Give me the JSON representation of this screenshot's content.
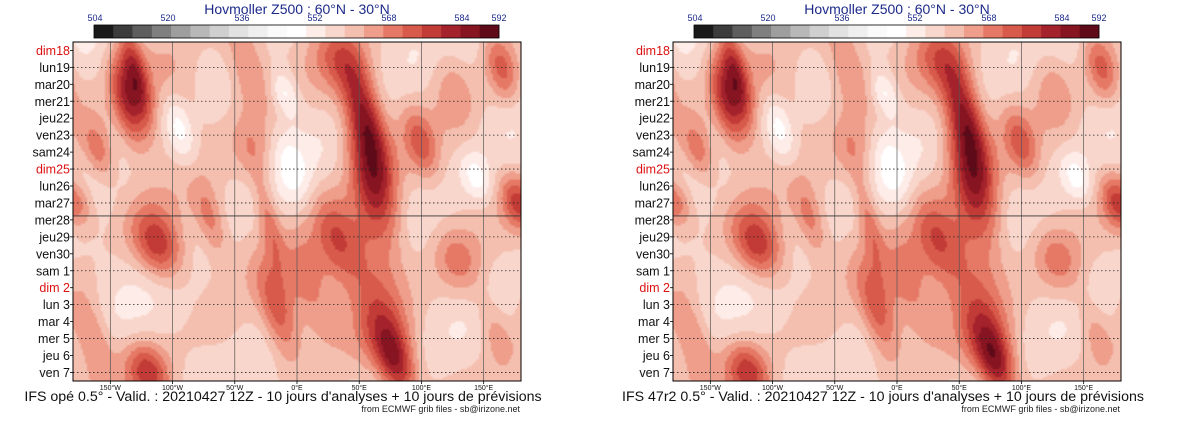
{
  "chart_data": [
    {
      "type": "heatmap",
      "title": "Hovmoller Z500 : 60°N - 30°N",
      "caption": "IFS opé 0.5° - Valid. : 20210427 12Z - 10 jours d'analyses + 10 jours de prévisions",
      "credit": "from ECMWF grib files - sb@irizone.net",
      "colorbar": {
        "tick_labels": [
          "504",
          "520",
          "536",
          "552",
          "568",
          "584",
          "592"
        ],
        "colors": [
          "#1a1a1a",
          "#3c3c3c",
          "#5e5e5e",
          "#7f7f7f",
          "#9e9e9e",
          "#b8b8b8",
          "#cfcfcf",
          "#e2e2e2",
          "#efefef",
          "#fafafa",
          "#ffffff",
          "#fdece8",
          "#f9d6cc",
          "#f4bfaf",
          "#ee9e8a",
          "#e57966",
          "#d85a4b",
          "#c23b36",
          "#a3222b",
          "#861421",
          "#5e0a18"
        ]
      },
      "y_dates": [
        {
          "label": "dim18",
          "red": true
        },
        {
          "label": "lun19",
          "red": false
        },
        {
          "label": "mar20",
          "red": false
        },
        {
          "label": "mer21",
          "red": false
        },
        {
          "label": "jeu22",
          "red": false
        },
        {
          "label": "ven23",
          "red": false
        },
        {
          "label": "sam24",
          "red": false
        },
        {
          "label": "dim25",
          "red": true
        },
        {
          "label": "lun26",
          "red": false
        },
        {
          "label": "mar27",
          "red": false
        },
        {
          "label": "mer28",
          "red": false
        },
        {
          "label": "jeu29",
          "red": false
        },
        {
          "label": "ven30",
          "red": false
        },
        {
          "label": "sam 1",
          "red": false
        },
        {
          "label": "dim 2",
          "red": true
        },
        {
          "label": "lun 3",
          "red": false
        },
        {
          "label": "mar 4",
          "red": false
        },
        {
          "label": "mer 5",
          "red": false
        },
        {
          "label": "jeu 6",
          "red": false
        },
        {
          "label": "ven 7",
          "red": false
        }
      ],
      "x_ticks": [
        {
          "label": "150°W",
          "lon": -150
        },
        {
          "label": "100°W",
          "lon": -100
        },
        {
          "label": "50°W",
          "lon": -50
        },
        {
          "label": "0°E",
          "lon": 0
        },
        {
          "label": "50°E",
          "lon": 50
        },
        {
          "label": "100°E",
          "lon": 100
        },
        {
          "label": "150°E",
          "lon": 150
        }
      ],
      "xlim": [
        -180,
        180
      ],
      "analysis_forecast_split": "mer28",
      "anomaly_blobs": [
        {
          "lon": -130,
          "day": 1.5,
          "value": 585,
          "slon": 7,
          "sday": 2.2
        },
        {
          "lon": -138,
          "day": 3.0,
          "value": 582,
          "slon": 8,
          "sday": 2.0
        },
        {
          "lon": -100,
          "day": 2.5,
          "value": 572,
          "slon": 20,
          "sday": 2.0
        },
        {
          "lon": -40,
          "day": 1.0,
          "value": 574,
          "slon": 12,
          "sday": 2.0
        },
        {
          "lon": -35,
          "day": 6.0,
          "value": 572,
          "slon": 12,
          "sday": 1.5
        },
        {
          "lon": 35,
          "day": 0.5,
          "value": 575,
          "slon": 15,
          "sday": 1.5
        },
        {
          "lon": 55,
          "day": 4.0,
          "value": 588,
          "slon": 10,
          "sday": 2.2
        },
        {
          "lon": 62,
          "day": 8.0,
          "value": 586,
          "slon": 13,
          "sday": 2.5
        },
        {
          "lon": 52,
          "day": 12.0,
          "value": 576,
          "slon": 20,
          "sday": 2.0
        },
        {
          "lon": 30,
          "day": 11.0,
          "value": 574,
          "slon": 12,
          "sday": 2.0
        },
        {
          "lon": 100,
          "day": 5.5,
          "value": 576,
          "slon": 9,
          "sday": 1.5
        },
        {
          "lon": 125,
          "day": 2.0,
          "value": 570,
          "slon": 12,
          "sday": 2.0
        },
        {
          "lon": -112,
          "day": 11.5,
          "value": 585,
          "slon": 14,
          "sday": 1.5
        },
        {
          "lon": -70,
          "day": 10.0,
          "value": 574,
          "slon": 8,
          "sday": 1.5
        },
        {
          "lon": -23,
          "day": 10.0,
          "value": 574,
          "slon": 6,
          "sday": 1.8
        },
        {
          "lon": -15,
          "day": 15.5,
          "value": 580,
          "slon": 10,
          "sday": 2.0
        },
        {
          "lon": 10,
          "day": 14.0,
          "value": 574,
          "slon": 12,
          "sday": 2.0
        },
        {
          "lon": 70,
          "day": 16.5,
          "value": 578,
          "slon": 15,
          "sday": 2.0
        },
        {
          "lon": 80,
          "day": 18.5,
          "value": 582,
          "slon": 10,
          "sday": 1.5
        },
        {
          "lon": -120,
          "day": 19.0,
          "value": 582,
          "slon": 12,
          "sday": 1.2
        },
        {
          "lon": -165,
          "day": 17.0,
          "value": 574,
          "slon": 10,
          "sday": 2.0
        },
        {
          "lon": 130,
          "day": 12.5,
          "value": 574,
          "slon": 14,
          "sday": 1.5
        },
        {
          "lon": 165,
          "day": 1.0,
          "value": 578,
          "slon": 9,
          "sday": 1.5
        },
        {
          "lon": -160,
          "day": 6.0,
          "value": 574,
          "slon": 8,
          "sday": 1.2
        },
        {
          "lon": -175,
          "day": 9.0,
          "value": 572,
          "slon": 8,
          "sday": 1.0
        },
        {
          "lon": 175,
          "day": 9.0,
          "value": 574,
          "slon": 8,
          "sday": 1.2
        },
        {
          "lon": -50,
          "day": 18.0,
          "value": 566,
          "slon": 20,
          "sday": 2.0
        },
        {
          "lon": 160,
          "day": 16.5,
          "value": 572,
          "slon": 10,
          "sday": 1.5
        },
        {
          "lon": -95,
          "day": 4.5,
          "value": 550,
          "slon": 8,
          "sday": 1.5
        },
        {
          "lon": -10,
          "day": 2.5,
          "value": 550,
          "slon": 8,
          "sday": 1.0
        },
        {
          "lon": 145,
          "day": 7.5,
          "value": 552,
          "slon": 8,
          "sday": 1.0
        },
        {
          "lon": -5,
          "day": 7.0,
          "value": 554,
          "slon": 10,
          "sday": 1.5
        }
      ]
    },
    {
      "type": "heatmap",
      "title": "Hovmoller Z500 : 60°N - 30°N",
      "caption": "IFS 47r2 0.5° - Valid. : 20210427 12Z - 10 jours d'analyses + 10 jours de prévisions",
      "credit": "from ECMWF grib files - sb@irizone.net",
      "colorbar": {
        "tick_labels": [
          "504",
          "520",
          "536",
          "552",
          "568",
          "584",
          "592"
        ],
        "colors": [
          "#1a1a1a",
          "#3c3c3c",
          "#5e5e5e",
          "#7f7f7f",
          "#9e9e9e",
          "#b8b8b8",
          "#cfcfcf",
          "#e2e2e2",
          "#efefef",
          "#fafafa",
          "#ffffff",
          "#fdece8",
          "#f9d6cc",
          "#f4bfaf",
          "#ee9e8a",
          "#e57966",
          "#d85a4b",
          "#c23b36",
          "#a3222b",
          "#861421",
          "#5e0a18"
        ]
      },
      "y_dates": [
        {
          "label": "dim18",
          "red": true
        },
        {
          "label": "lun19",
          "red": false
        },
        {
          "label": "mar20",
          "red": false
        },
        {
          "label": "mer21",
          "red": false
        },
        {
          "label": "jeu22",
          "red": false
        },
        {
          "label": "ven23",
          "red": false
        },
        {
          "label": "sam24",
          "red": false
        },
        {
          "label": "dim25",
          "red": true
        },
        {
          "label": "lun26",
          "red": false
        },
        {
          "label": "mar27",
          "red": false
        },
        {
          "label": "mer28",
          "red": false
        },
        {
          "label": "jeu29",
          "red": false
        },
        {
          "label": "ven30",
          "red": false
        },
        {
          "label": "sam 1",
          "red": false
        },
        {
          "label": "dim 2",
          "red": true
        },
        {
          "label": "lun 3",
          "red": false
        },
        {
          "label": "mar 4",
          "red": false
        },
        {
          "label": "mer 5",
          "red": false
        },
        {
          "label": "jeu 6",
          "red": false
        },
        {
          "label": "ven 7",
          "red": false
        }
      ],
      "x_ticks": [
        {
          "label": "150°W",
          "lon": -150
        },
        {
          "label": "100°W",
          "lon": -100
        },
        {
          "label": "50°W",
          "lon": -50
        },
        {
          "label": "0°E",
          "lon": 0
        },
        {
          "label": "50°E",
          "lon": 50
        },
        {
          "label": "100°E",
          "lon": 100
        },
        {
          "label": "150°E",
          "lon": 150
        }
      ],
      "xlim": [
        -180,
        180
      ],
      "analysis_forecast_split": "mer28",
      "anomaly_blobs": [
        {
          "lon": -130,
          "day": 1.5,
          "value": 585,
          "slon": 7,
          "sday": 2.2
        },
        {
          "lon": -138,
          "day": 3.0,
          "value": 582,
          "slon": 8,
          "sday": 2.0
        },
        {
          "lon": -100,
          "day": 2.5,
          "value": 572,
          "slon": 20,
          "sday": 2.0
        },
        {
          "lon": -40,
          "day": 1.0,
          "value": 574,
          "slon": 12,
          "sday": 2.0
        },
        {
          "lon": -35,
          "day": 6.0,
          "value": 572,
          "slon": 12,
          "sday": 1.5
        },
        {
          "lon": 35,
          "day": 0.5,
          "value": 575,
          "slon": 15,
          "sday": 1.5
        },
        {
          "lon": 55,
          "day": 4.0,
          "value": 588,
          "slon": 10,
          "sday": 2.2
        },
        {
          "lon": 62,
          "day": 8.0,
          "value": 586,
          "slon": 13,
          "sday": 2.5
        },
        {
          "lon": 52,
          "day": 12.0,
          "value": 576,
          "slon": 20,
          "sday": 2.0
        },
        {
          "lon": 30,
          "day": 11.0,
          "value": 574,
          "slon": 12,
          "sday": 2.0
        },
        {
          "lon": 100,
          "day": 5.5,
          "value": 576,
          "slon": 9,
          "sday": 1.5
        },
        {
          "lon": 125,
          "day": 2.0,
          "value": 570,
          "slon": 12,
          "sday": 2.0
        },
        {
          "lon": -112,
          "day": 11.5,
          "value": 585,
          "slon": 14,
          "sday": 1.5
        },
        {
          "lon": -70,
          "day": 10.0,
          "value": 574,
          "slon": 8,
          "sday": 1.5
        },
        {
          "lon": -23,
          "day": 10.0,
          "value": 574,
          "slon": 6,
          "sday": 1.8
        },
        {
          "lon": -15,
          "day": 15.5,
          "value": 580,
          "slon": 10,
          "sday": 2.0
        },
        {
          "lon": 10,
          "day": 14.0,
          "value": 574,
          "slon": 12,
          "sday": 2.0
        },
        {
          "lon": 70,
          "day": 16.5,
          "value": 578,
          "slon": 15,
          "sday": 2.0
        },
        {
          "lon": 80,
          "day": 18.5,
          "value": 584,
          "slon": 10,
          "sday": 1.5
        },
        {
          "lon": -120,
          "day": 19.0,
          "value": 582,
          "slon": 12,
          "sday": 1.2
        },
        {
          "lon": -165,
          "day": 17.0,
          "value": 574,
          "slon": 10,
          "sday": 2.0
        },
        {
          "lon": 130,
          "day": 12.5,
          "value": 574,
          "slon": 14,
          "sday": 1.5
        },
        {
          "lon": 165,
          "day": 1.0,
          "value": 578,
          "slon": 9,
          "sday": 1.5
        },
        {
          "lon": -160,
          "day": 6.0,
          "value": 574,
          "slon": 8,
          "sday": 1.2
        },
        {
          "lon": -175,
          "day": 9.0,
          "value": 572,
          "slon": 8,
          "sday": 1.0
        },
        {
          "lon": 175,
          "day": 9.0,
          "value": 574,
          "slon": 8,
          "sday": 1.2
        },
        {
          "lon": -50,
          "day": 18.0,
          "value": 566,
          "slon": 20,
          "sday": 2.0
        },
        {
          "lon": 160,
          "day": 16.5,
          "value": 572,
          "slon": 10,
          "sday": 1.5
        },
        {
          "lon": -95,
          "day": 4.5,
          "value": 550,
          "slon": 8,
          "sday": 1.5
        },
        {
          "lon": -10,
          "day": 2.5,
          "value": 550,
          "slon": 8,
          "sday": 1.0
        },
        {
          "lon": 145,
          "day": 7.5,
          "value": 552,
          "slon": 8,
          "sday": 1.0
        },
        {
          "lon": -5,
          "day": 7.0,
          "value": 554,
          "slon": 10,
          "sday": 1.5
        }
      ]
    }
  ]
}
